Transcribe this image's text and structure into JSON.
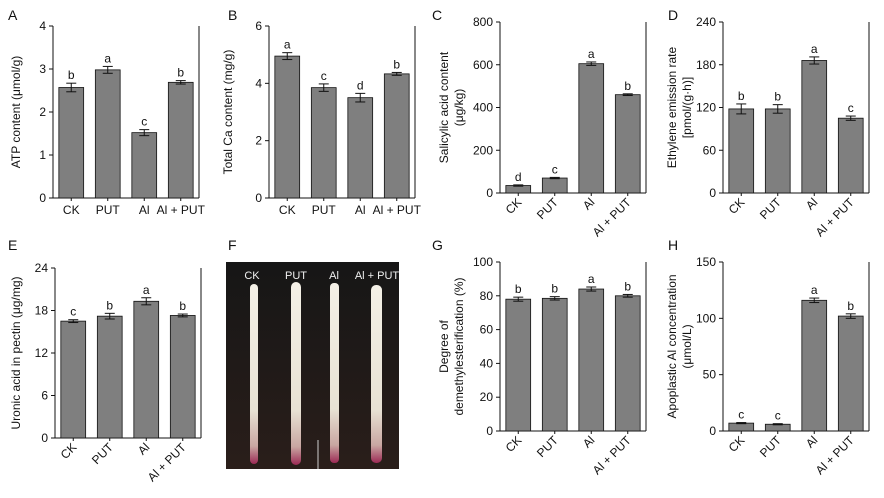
{
  "photo": {
    "panel_label": "F",
    "labels": [
      "CK",
      "PUT",
      "Al",
      "Al + PUT"
    ]
  },
  "chart_data": [
    {
      "panel": "A",
      "type": "bar",
      "categories": [
        "CK",
        "PUT",
        "Al",
        "Al + PUT"
      ],
      "values": [
        2.57,
        2.98,
        1.52,
        2.69
      ],
      "errors": [
        0.1,
        0.08,
        0.07,
        0.04
      ],
      "letters": [
        "b",
        "a",
        "c",
        "b"
      ],
      "ylabel_lines": [
        "ATP content (μmol/g)"
      ],
      "ylim": [
        0,
        4
      ],
      "yticks": [
        0,
        1,
        2,
        3,
        4
      ],
      "rotate_x": false
    },
    {
      "panel": "B",
      "type": "bar",
      "categories": [
        "CK",
        "PUT",
        "Al",
        "Al + PUT"
      ],
      "values": [
        4.95,
        3.85,
        3.5,
        4.33
      ],
      "errors": [
        0.12,
        0.13,
        0.15,
        0.05
      ],
      "letters": [
        "a",
        "c",
        "d",
        "b"
      ],
      "ylabel_lines": [
        "Total Ca content (mg/g)"
      ],
      "ylim": [
        0,
        6
      ],
      "yticks": [
        0,
        2,
        4,
        6
      ],
      "rotate_x": false
    },
    {
      "panel": "C",
      "type": "bar",
      "categories": [
        "CK",
        "PUT",
        "Al",
        "Al + PUT"
      ],
      "values": [
        35,
        70,
        605,
        460
      ],
      "errors": [
        3,
        3,
        8,
        4
      ],
      "letters": [
        "d",
        "c",
        "a",
        "b"
      ],
      "ylabel_lines": [
        "Salicylic acid content",
        "(μg/kg)"
      ],
      "ylim": [
        0,
        800
      ],
      "yticks": [
        0,
        200,
        400,
        600,
        800
      ],
      "rotate_x": true
    },
    {
      "panel": "D",
      "type": "bar",
      "categories": [
        "CK",
        "PUT",
        "Al",
        "Al + PUT"
      ],
      "values": [
        118,
        118,
        186,
        105
      ],
      "errors": [
        7,
        6,
        5,
        3
      ],
      "letters": [
        "b",
        "b",
        "a",
        "c"
      ],
      "ylabel_lines": [
        "Ethylene emission rate",
        "[pmol/(g·h)]"
      ],
      "ylim": [
        0,
        240
      ],
      "yticks": [
        0,
        60,
        120,
        180,
        240
      ],
      "rotate_x": true
    },
    {
      "panel": "E",
      "type": "bar",
      "categories": [
        "CK",
        "PUT",
        "Al",
        "Al + PUT"
      ],
      "values": [
        16.5,
        17.2,
        19.3,
        17.3
      ],
      "errors": [
        0.2,
        0.4,
        0.5,
        0.2
      ],
      "letters": [
        "c",
        "b",
        "a",
        "b"
      ],
      "ylabel_lines": [
        "Uronic acid in pectin (μg/mg)"
      ],
      "ylim": [
        0,
        24
      ],
      "yticks": [
        0,
        6,
        12,
        18,
        24
      ],
      "rotate_x": true
    },
    {
      "panel": "G",
      "type": "bar",
      "categories": [
        "CK",
        "PUT",
        "Al",
        "Al + PUT"
      ],
      "values": [
        78,
        78.5,
        84,
        80
      ],
      "errors": [
        1.2,
        1.0,
        1.2,
        0.8
      ],
      "letters": [
        "b",
        "b",
        "a",
        "b"
      ],
      "ylabel_lines": [
        "Degree of",
        "demethylesterification (%)"
      ],
      "ylim": [
        0,
        100
      ],
      "yticks": [
        0,
        20,
        40,
        60,
        80,
        100
      ],
      "rotate_x": true
    },
    {
      "panel": "H",
      "type": "bar",
      "categories": [
        "CK",
        "PUT",
        "Al",
        "Al + PUT"
      ],
      "values": [
        7,
        6,
        116,
        102
      ],
      "errors": [
        0.5,
        0.5,
        2,
        2
      ],
      "letters": [
        "c",
        "c",
        "a",
        "b"
      ],
      "ylabel_lines": [
        "Apoplastic Al concentration",
        "(μmol/L)"
      ],
      "ylim": [
        0,
        150
      ],
      "yticks": [
        0,
        50,
        100,
        150
      ],
      "rotate_x": true
    }
  ]
}
